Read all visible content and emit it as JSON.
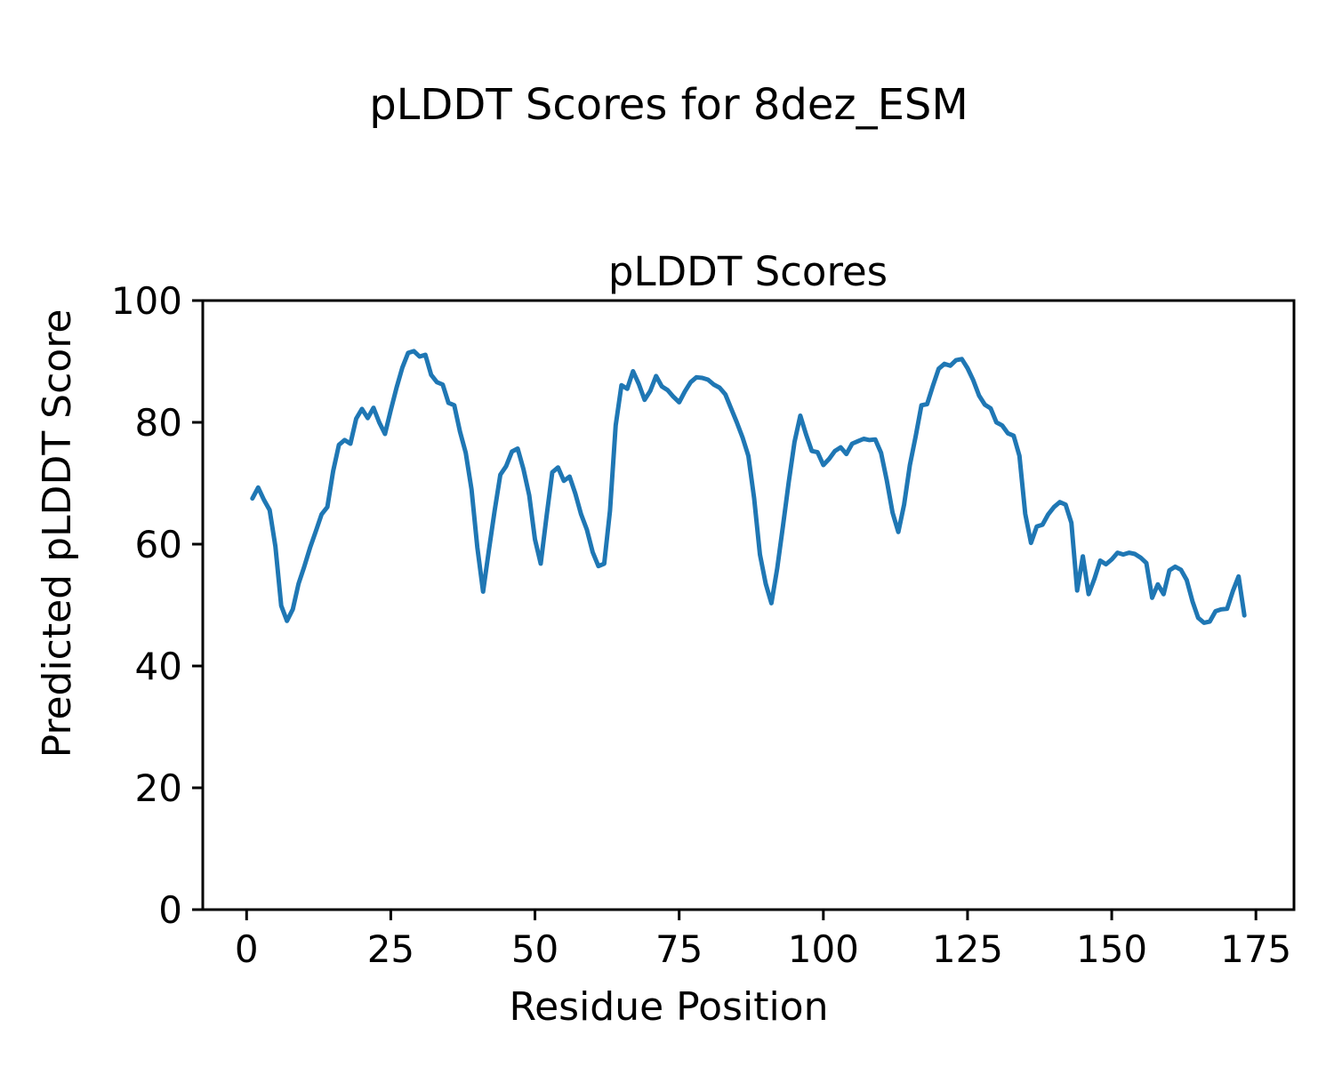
{
  "figure": {
    "suptitle": "pLDDT Scores for 8dez_ESM"
  },
  "chart_data": {
    "type": "line",
    "title": "pLDDT Scores",
    "suptitle": "pLDDT Scores for 8dez_ESM",
    "xlabel": "Residue Position",
    "ylabel": "Predicted pLDDT Score",
    "xlim": [
      -7.6,
      181.6
    ],
    "ylim": [
      0,
      100
    ],
    "xticks": [
      0,
      25,
      50,
      75,
      100,
      125,
      150,
      175
    ],
    "yticks": [
      0,
      20,
      40,
      60,
      80,
      100
    ],
    "grid": false,
    "legend_position": "none",
    "line_color": "#1f77b4",
    "axis_color": "#000000",
    "line_width": 5,
    "series": [
      {
        "name": "pLDDT",
        "x_range": [
          1,
          173
        ],
        "y": [
          67.5,
          69.3,
          67.3,
          65.6,
          59.6,
          49.9,
          47.4,
          49.3,
          53.5,
          56.3,
          59.4,
          62.1,
          64.9,
          66.1,
          72.0,
          76.3,
          77.1,
          76.5,
          80.6,
          82.2,
          80.7,
          82.4,
          80.0,
          78.1,
          82.0,
          85.7,
          89.0,
          91.4,
          91.7,
          90.8,
          91.1,
          87.8,
          86.6,
          86.2,
          83.2,
          82.8,
          78.5,
          75.0,
          69.0,
          59.5,
          52.2,
          59.0,
          65.5,
          71.4,
          72.8,
          75.2,
          75.7,
          72.3,
          68.0,
          60.8,
          56.8,
          64.5,
          71.8,
          72.6,
          70.4,
          71.1,
          68.3,
          64.9,
          62.4,
          58.7,
          56.4,
          56.8,
          65.5,
          79.5,
          86.1,
          85.5,
          88.4,
          86.3,
          83.7,
          85.2,
          87.6,
          85.9,
          85.3,
          84.2,
          83.3,
          85.1,
          86.6,
          87.4,
          87.3,
          87.0,
          86.2,
          85.7,
          84.6,
          82.3,
          80.0,
          77.5,
          74.5,
          67.5,
          58.3,
          53.5,
          50.3,
          56.0,
          63.0,
          70.2,
          76.8,
          81.1,
          78.0,
          75.3,
          75.1,
          73.0,
          74.0,
          75.3,
          75.9,
          74.8,
          76.5,
          76.9,
          77.3,
          77.1,
          77.2,
          75.0,
          70.5,
          65.2,
          62.0,
          66.5,
          73.0,
          77.7,
          82.8,
          83.0,
          86.0,
          88.8,
          89.6,
          89.3,
          90.2,
          90.4,
          88.9,
          86.9,
          84.4,
          82.9,
          82.3,
          80.0,
          79.5,
          78.2,
          77.8,
          74.5,
          65.0,
          60.2,
          62.9,
          63.2,
          64.9,
          66.1,
          66.9,
          66.5,
          63.5,
          52.4,
          58.0,
          51.8,
          54.3,
          57.3,
          56.7,
          57.5,
          58.6,
          58.3,
          58.6,
          58.4,
          57.8,
          56.9,
          51.2,
          53.4,
          51.8,
          55.7,
          56.3,
          55.8,
          54.1,
          50.6,
          47.9,
          47.1,
          47.3,
          49.0,
          49.3,
          49.4,
          52.3,
          54.7,
          48.3
        ]
      }
    ]
  }
}
